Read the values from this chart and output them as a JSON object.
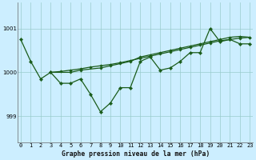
{
  "title": "Graphe pression niveau de la mer (hPa)",
  "bg_color": "#cceeff",
  "grid_color": "#99cccc",
  "line_color": "#1a5c1a",
  "x_ticks": [
    0,
    1,
    2,
    3,
    4,
    5,
    6,
    7,
    8,
    9,
    10,
    11,
    12,
    13,
    14,
    15,
    16,
    17,
    18,
    19,
    20,
    21,
    22,
    23
  ],
  "y_ticks": [
    999,
    1000,
    1001
  ],
  "ylim": [
    998.4,
    1001.6
  ],
  "xlim": [
    -0.3,
    23.3
  ],
  "jagged_x": [
    0,
    1,
    2,
    3,
    4,
    5,
    6,
    7,
    8,
    9,
    10,
    11,
    12,
    13,
    14,
    15,
    16,
    17,
    18,
    19,
    20,
    21,
    22,
    23
  ],
  "jagged_y": [
    1000.75,
    1000.25,
    999.85,
    1000.0,
    999.75,
    999.75,
    999.85,
    999.5,
    999.1,
    999.3,
    999.65,
    999.65,
    1000.25,
    1000.35,
    1000.05,
    1000.1,
    1000.25,
    1000.45,
    1000.45,
    1001.0,
    1000.7,
    1000.75,
    1000.65,
    1000.65
  ],
  "trend1_x": [
    3,
    5,
    6,
    8,
    9,
    10,
    11,
    12,
    13,
    14,
    15,
    16,
    17,
    18,
    19,
    20,
    21,
    22,
    23
  ],
  "trend1_y": [
    1000.0,
    1000.0,
    1000.05,
    1000.1,
    1000.15,
    1000.2,
    1000.25,
    1000.35,
    1000.4,
    1000.45,
    1000.5,
    1000.55,
    1000.6,
    1000.65,
    1000.7,
    1000.75,
    1000.8,
    1000.82,
    1000.8
  ],
  "trend2_x": [
    3,
    4,
    5,
    6,
    7,
    8,
    9,
    10,
    11,
    12,
    13,
    14,
    15,
    16,
    17,
    18,
    19,
    20,
    21,
    22,
    23
  ],
  "trend2_y": [
    1000.0,
    1000.02,
    1000.05,
    1000.08,
    1000.12,
    1000.15,
    1000.18,
    1000.22,
    1000.27,
    1000.32,
    1000.37,
    1000.42,
    1000.47,
    1000.52,
    1000.57,
    1000.62,
    1000.67,
    1000.72,
    1000.75,
    1000.78,
    1000.8
  ]
}
